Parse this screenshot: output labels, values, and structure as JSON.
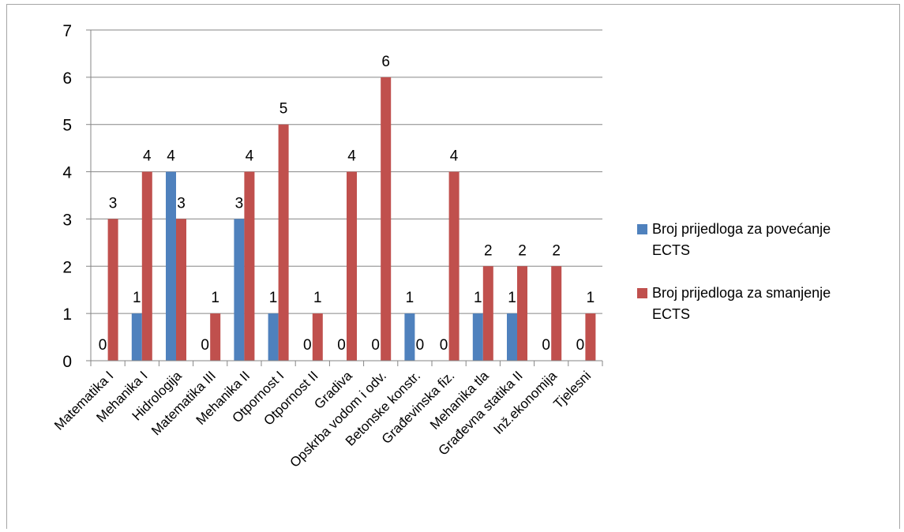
{
  "chart_data": {
    "type": "bar",
    "categories": [
      "Matematika I",
      "Mehanika I",
      "Hidrologija",
      "Matematika III",
      "Mehanika II",
      "Otpornost I",
      "Otpornost II",
      "Gradiva",
      "Opskrba vodom i odv.",
      "Betonske konstr.",
      "Građevinska fiz.",
      "Mehanika tla",
      "Građevna statika II",
      "Inž.ekonomija",
      "Tjelesni"
    ],
    "series": [
      {
        "name": "Broj prijedloga za povećanje ECTS",
        "color": "#4f81bd",
        "values": [
          0,
          1,
          4,
          0,
          3,
          1,
          0,
          0,
          0,
          1,
          0,
          1,
          1,
          0,
          0
        ]
      },
      {
        "name": "Broj prijedloga za smanjenje ECTS",
        "color": "#c0504d",
        "values": [
          3,
          4,
          3,
          1,
          4,
          5,
          1,
          4,
          6,
          0,
          4,
          2,
          2,
          2,
          1
        ]
      }
    ],
    "ylim": [
      0,
      7
    ],
    "yticks": [
      0,
      1,
      2,
      3,
      4,
      5,
      6,
      7
    ],
    "grid": true,
    "data_labels": true,
    "legend_position": "right"
  }
}
